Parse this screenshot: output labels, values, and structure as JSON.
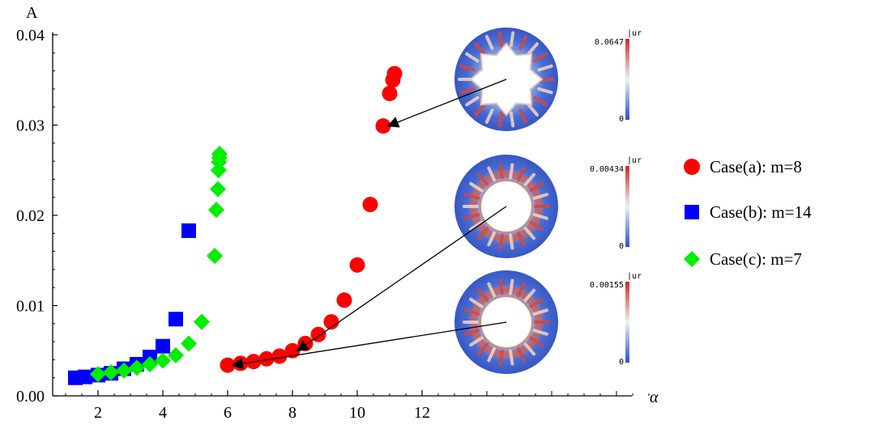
{
  "chart_data": {
    "type": "scatter",
    "ylabel": "A",
    "xlabel": "α",
    "xlim": [
      0.6,
      19.5
    ],
    "ylim": [
      0,
      0.04
    ],
    "xticks": [
      2,
      4,
      6,
      8,
      10,
      12
    ],
    "yticks": [
      "0.00",
      "0.01",
      "0.02",
      "0.03",
      "0.04"
    ],
    "yticks_values": [
      0,
      0.01,
      0.02,
      0.03,
      0.04
    ],
    "legend_position": "right",
    "series": [
      {
        "name": "Case(a): m=8",
        "marker": "circle",
        "color": "#ff0000",
        "points": [
          [
            6.0,
            0.0034
          ],
          [
            6.4,
            0.0036
          ],
          [
            6.8,
            0.0038
          ],
          [
            7.2,
            0.0041
          ],
          [
            7.6,
            0.0044
          ],
          [
            8.0,
            0.005
          ],
          [
            8.4,
            0.0058
          ],
          [
            8.8,
            0.0068
          ],
          [
            9.2,
            0.0082
          ],
          [
            9.6,
            0.0106
          ],
          [
            10.0,
            0.0145
          ],
          [
            10.4,
            0.0212
          ],
          [
            10.8,
            0.0299
          ],
          [
            11.0,
            0.0335
          ],
          [
            11.1,
            0.035
          ],
          [
            11.15,
            0.0357
          ]
        ]
      },
      {
        "name": "Case(b): m=14",
        "marker": "square",
        "color": "#0000ff",
        "points": [
          [
            1.3,
            0.002
          ],
          [
            1.6,
            0.0021
          ],
          [
            2.0,
            0.0023
          ],
          [
            2.4,
            0.0025
          ],
          [
            2.8,
            0.003
          ],
          [
            3.2,
            0.0035
          ],
          [
            3.6,
            0.0043
          ],
          [
            4.0,
            0.0055
          ],
          [
            4.4,
            0.0085
          ],
          [
            4.8,
            0.0183
          ]
        ]
      },
      {
        "name": "Case(c): m=7",
        "marker": "diamond",
        "color": "#00ee00",
        "points": [
          [
            2.0,
            0.0024
          ],
          [
            2.4,
            0.0026
          ],
          [
            2.8,
            0.0028
          ],
          [
            3.2,
            0.0031
          ],
          [
            3.6,
            0.0035
          ],
          [
            4.0,
            0.0039
          ],
          [
            4.4,
            0.0045
          ],
          [
            4.8,
            0.0058
          ],
          [
            5.2,
            0.0082
          ],
          [
            5.6,
            0.0155
          ],
          [
            5.65,
            0.0206
          ],
          [
            5.7,
            0.0229
          ],
          [
            5.72,
            0.025
          ],
          [
            5.73,
            0.0259
          ],
          [
            5.74,
            0.0264
          ],
          [
            5.75,
            0.0268
          ]
        ]
      }
    ],
    "insets": [
      {
        "colorbar_title": "|ur",
        "colorbar_max": "0.0647",
        "colorbar_min": "0",
        "arrow_to": [
          10.8,
          0.0299
        ]
      },
      {
        "colorbar_title": "|ur",
        "colorbar_max": "0.00434",
        "colorbar_min": "0",
        "arrow_to": [
          8.0,
          0.005
        ]
      },
      {
        "colorbar_title": "|ur",
        "colorbar_max": "0.00155",
        "colorbar_min": "0",
        "arrow_to": [
          6.0,
          0.0034
        ]
      }
    ]
  }
}
